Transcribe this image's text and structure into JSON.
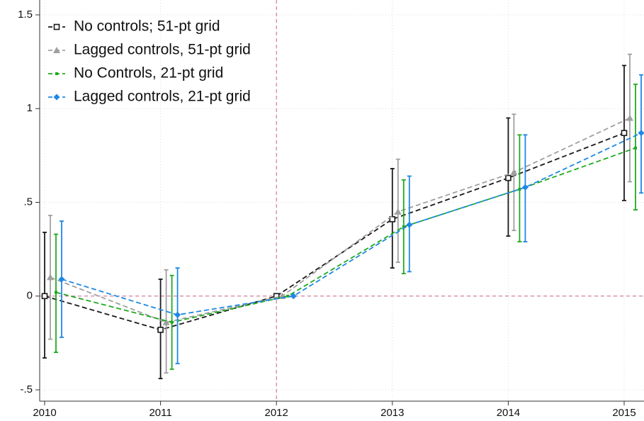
{
  "chart_data": {
    "type": "line",
    "x": [
      2010,
      2011,
      2012,
      2013,
      2014,
      2015
    ],
    "xlim": [
      2010,
      2015
    ],
    "xticks": [
      2010,
      2011,
      2012,
      2013,
      2014,
      2015
    ],
    "ylim": [
      -0.5,
      1.5
    ],
    "yticks": [
      {
        "value": -0.5,
        "label": "-.5"
      },
      0,
      {
        "value": 0.5,
        "label": ".5"
      },
      1,
      1.5
    ],
    "grid": true,
    "legend": "top-left",
    "reference_lines": {
      "x": 2012,
      "y": 0,
      "color": "#c9608a"
    },
    "series": [
      {
        "name": "No controls; 51-pt grid",
        "color": "#1a1a1a",
        "marker": "square-open",
        "values": [
          0.0,
          -0.18,
          0.0,
          0.41,
          0.63,
          0.87
        ],
        "lower": [
          -0.33,
          -0.44,
          null,
          0.15,
          0.32,
          0.51
        ],
        "upper": [
          0.34,
          0.09,
          null,
          0.68,
          0.95,
          1.23
        ]
      },
      {
        "name": "Lagged controls, 51-pt grid",
        "color": "#a0a0a0",
        "marker": "triangle",
        "values": [
          0.1,
          -0.14,
          0.0,
          0.45,
          0.66,
          0.95
        ],
        "lower": [
          -0.23,
          -0.41,
          null,
          0.18,
          0.35,
          0.61
        ],
        "upper": [
          0.43,
          0.14,
          null,
          0.73,
          0.97,
          1.29
        ]
      },
      {
        "name": "No Controls, 21-pt grid",
        "color": "#1faa1f",
        "marker": "dot",
        "values": [
          0.02,
          -0.14,
          0.0,
          0.37,
          0.57,
          0.79
        ],
        "lower": [
          -0.3,
          -0.39,
          null,
          0.12,
          0.29,
          0.46
        ],
        "upper": [
          0.33,
          0.11,
          null,
          0.62,
          0.86,
          1.13
        ]
      },
      {
        "name": "Lagged controls, 21-pt grid",
        "color": "#1e88e5",
        "marker": "diamond",
        "values": [
          0.09,
          -0.1,
          0.0,
          0.38,
          0.58,
          0.87
        ],
        "lower": [
          -0.22,
          -0.36,
          null,
          0.13,
          0.29,
          0.55
        ],
        "upper": [
          0.4,
          0.15,
          null,
          0.64,
          0.86,
          1.18
        ]
      }
    ]
  }
}
